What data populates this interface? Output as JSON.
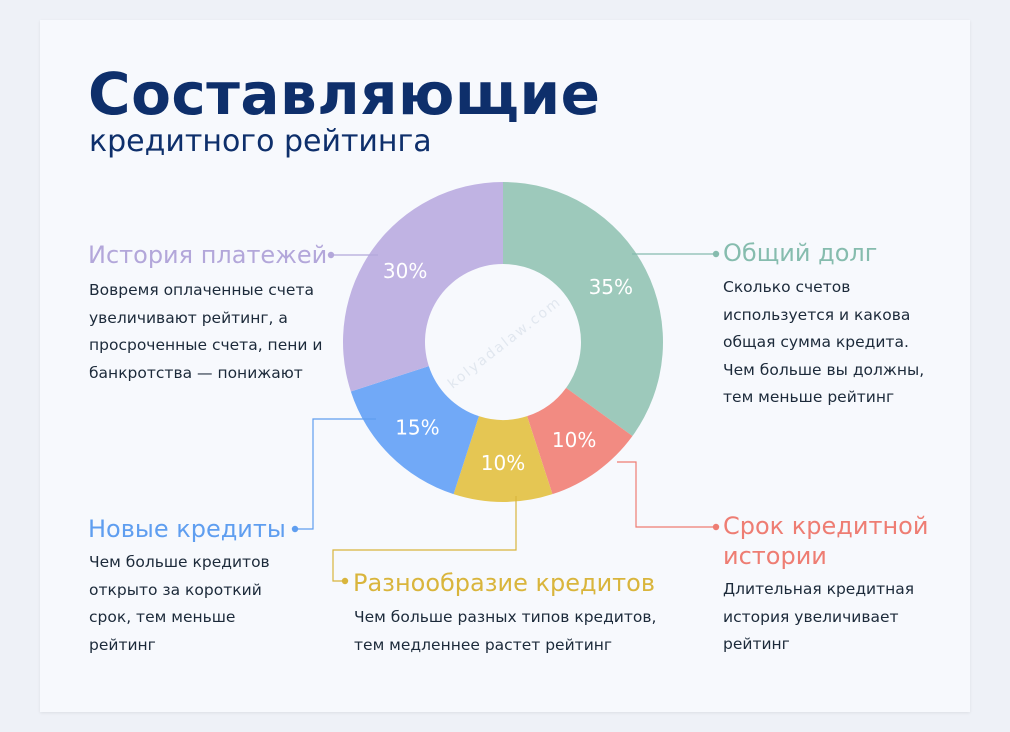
{
  "title": "Составляющие",
  "subtitle": "кредитного рейтинга",
  "watermark": "kolyadalaw.com",
  "chart_data": {
    "type": "pie",
    "title": "Составляющие кредитного рейтинга",
    "slices": [
      {
        "label": "Общий долг",
        "value": 35,
        "display": "35%",
        "color": "#9dc9bb"
      },
      {
        "label": "Срок кредитной истории",
        "value": 10,
        "display": "10%",
        "color": "#f28b82"
      },
      {
        "label": "Разнообразие кредитов",
        "value": 10,
        "display": "10%",
        "color": "#e5c653"
      },
      {
        "label": "Новые кредиты",
        "value": 15,
        "display": "15%",
        "color": "#71a9f7"
      },
      {
        "label": "История платежей",
        "value": 30,
        "display": "30%",
        "color": "#c0b3e3"
      }
    ]
  },
  "sections": {
    "payment_history": {
      "title": "История платежей",
      "lines": [
        "Вовремя оплаченные счета",
        "увеличивают рейтинг, а",
        "просроченные счета, пени и",
        "банкротства — понижают"
      ],
      "color": "#b3a7da"
    },
    "total_debt": {
      "title": "Общий долг",
      "lines": [
        "Сколько счетов",
        "используется и какова",
        "общая сумма кредита.",
        "Чем больше вы должны,",
        "тем меньше рейтинг"
      ],
      "color": "#86bcae"
    },
    "new_credits": {
      "title": "Новые кредиты",
      "lines": [
        "Чем больше кредитов",
        "открыто за короткий",
        "срок, тем меньше",
        "рейтинг"
      ],
      "color": "#5f9ef0"
    },
    "credit_mix": {
      "title": "Разнообразие кредитов",
      "lines": [
        "Чем больше разных типов кредитов,",
        "тем медленнее растет рейтинг"
      ],
      "color": "#d9b53c"
    },
    "history_length": {
      "title_lines": [
        "Срок кредитной",
        "истории"
      ],
      "lines": [
        "Длительная кредитная",
        "история увеличивает",
        "рейтинг"
      ],
      "color": "#ee7d73"
    }
  }
}
